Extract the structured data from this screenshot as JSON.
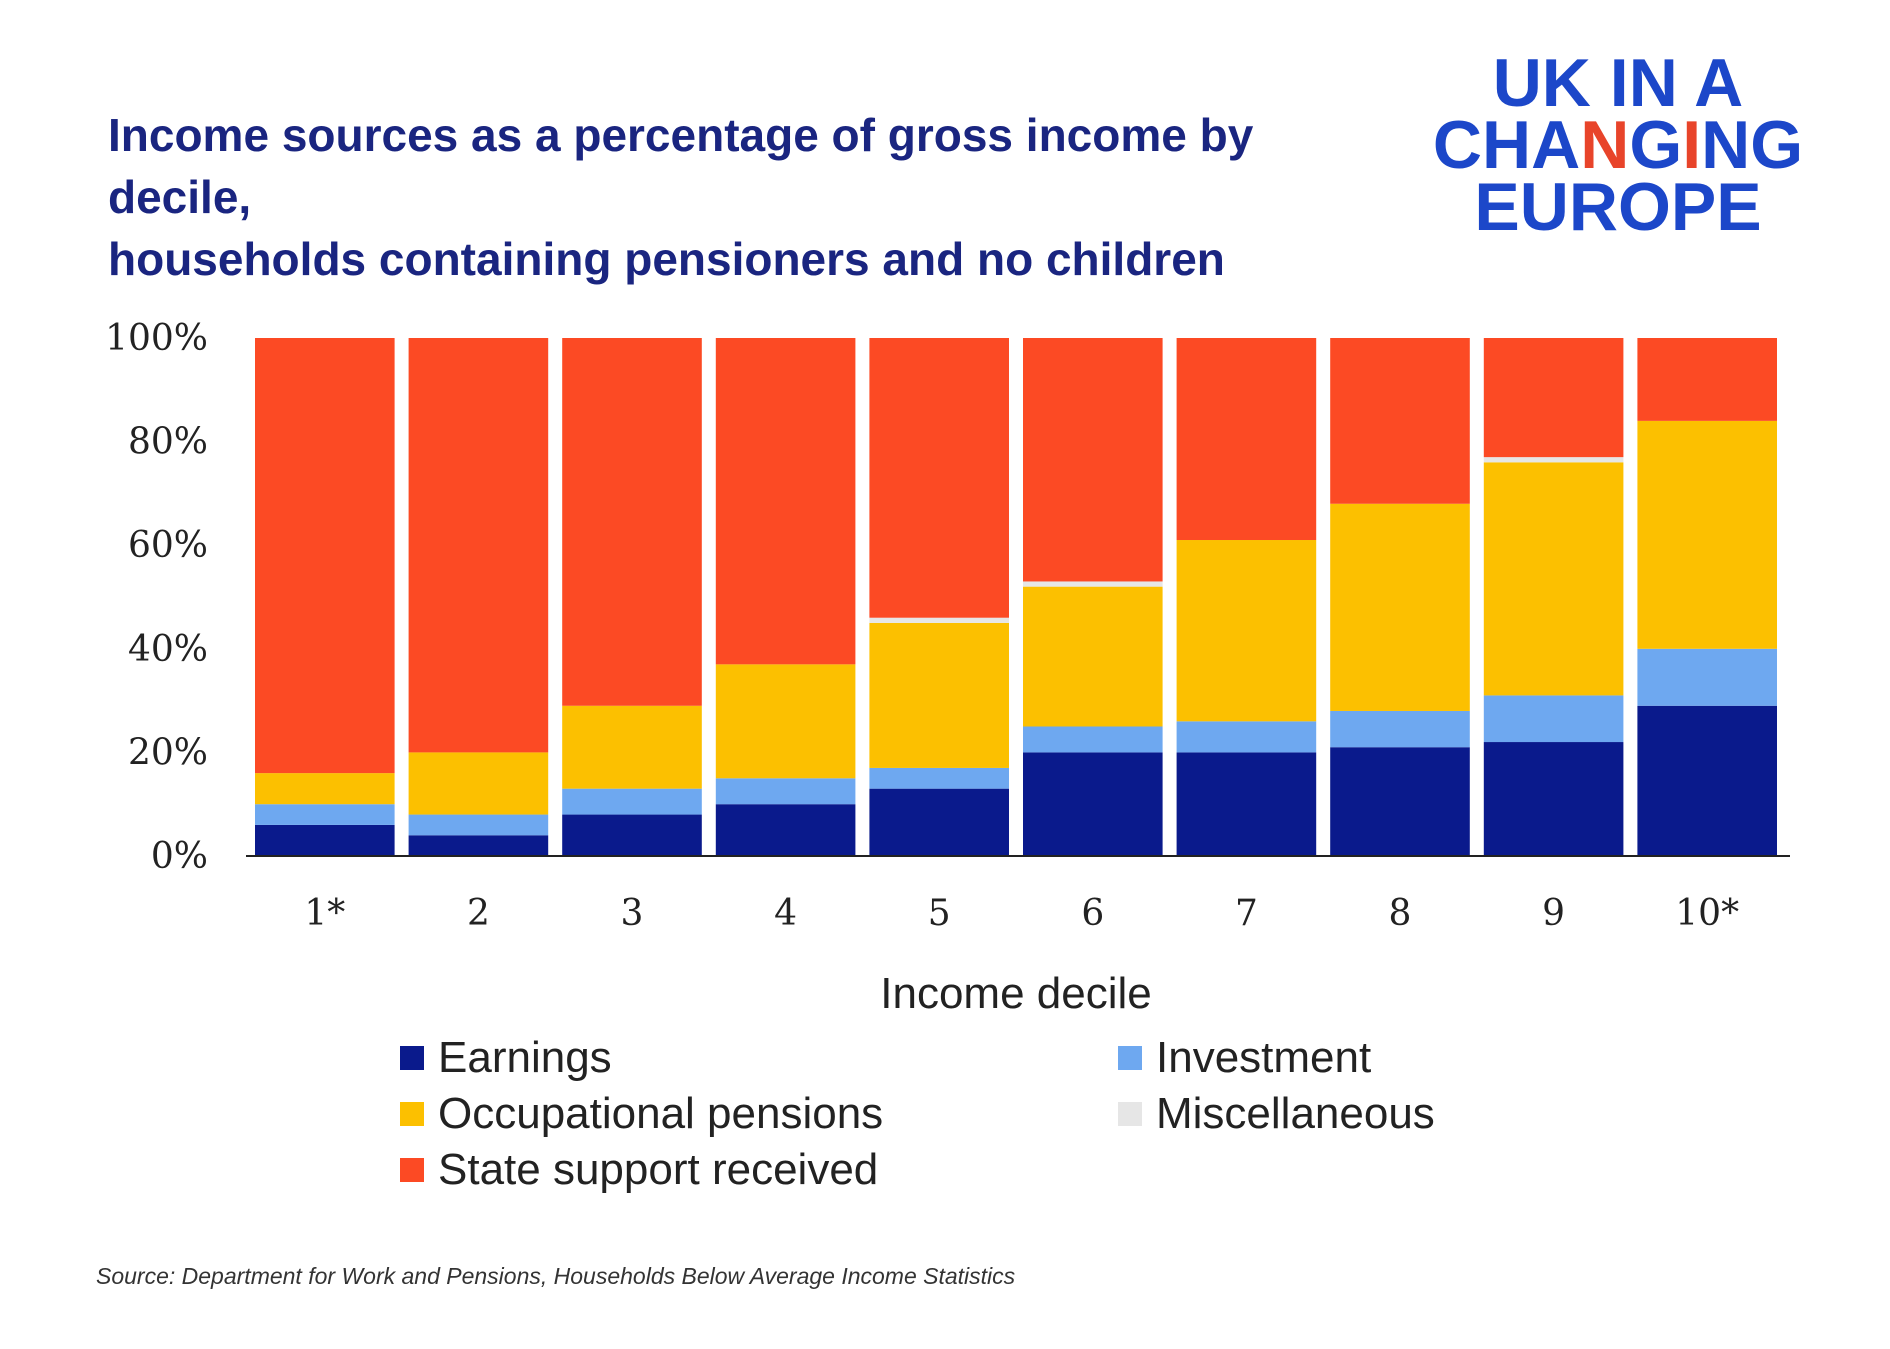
{
  "title_line1": "Income sources as a percentage of gross income by decile,",
  "title_line2": "households containing pensioners and no children",
  "logo": {
    "line1": "UK IN A",
    "line2_a": "CHA",
    "line2_b": "N",
    "line2_c": "G",
    "line2_d": "I",
    "line2_e": "NG",
    "line3": "EUROPE"
  },
  "source": "Source: Department for Work and Pensions, Households Below Average Income Statistics",
  "chart_data": {
    "type": "bar",
    "stacked": true,
    "xlabel": "Income decile",
    "ylabel": "",
    "ylim": [
      0,
      100
    ],
    "yticks": [
      "0%",
      "20%",
      "40%",
      "60%",
      "80%",
      "100%"
    ],
    "categories": [
      "1*",
      "2",
      "3",
      "4",
      "5",
      "6",
      "7",
      "8",
      "9",
      "10*"
    ],
    "series": [
      {
        "name": "Earnings",
        "color": "#0a1a8c",
        "values": [
          6,
          4,
          8,
          10,
          13,
          20,
          20,
          21,
          22,
          29
        ]
      },
      {
        "name": "Investment",
        "color": "#6ea8f0",
        "values": [
          4,
          4,
          5,
          5,
          4,
          5,
          6,
          7,
          9,
          11
        ]
      },
      {
        "name": "Occupational pensions",
        "color": "#fcc000",
        "values": [
          6,
          12,
          16,
          22,
          28,
          27,
          35,
          40,
          45,
          44
        ]
      },
      {
        "name": "Miscellaneous",
        "color": "#e6e6e6",
        "values": [
          0,
          0,
          0,
          0,
          1,
          1,
          0,
          0,
          1,
          0
        ]
      },
      {
        "name": "State support received",
        "color": "#fc4a24",
        "values": [
          84,
          80,
          71,
          63,
          54,
          47,
          39,
          32,
          23,
          16
        ]
      }
    ],
    "legend": {
      "placement": "bottom",
      "order": [
        "Earnings",
        "Investment",
        "Occupational pensions",
        "Miscellaneous",
        "State support received"
      ]
    },
    "grid": false
  }
}
